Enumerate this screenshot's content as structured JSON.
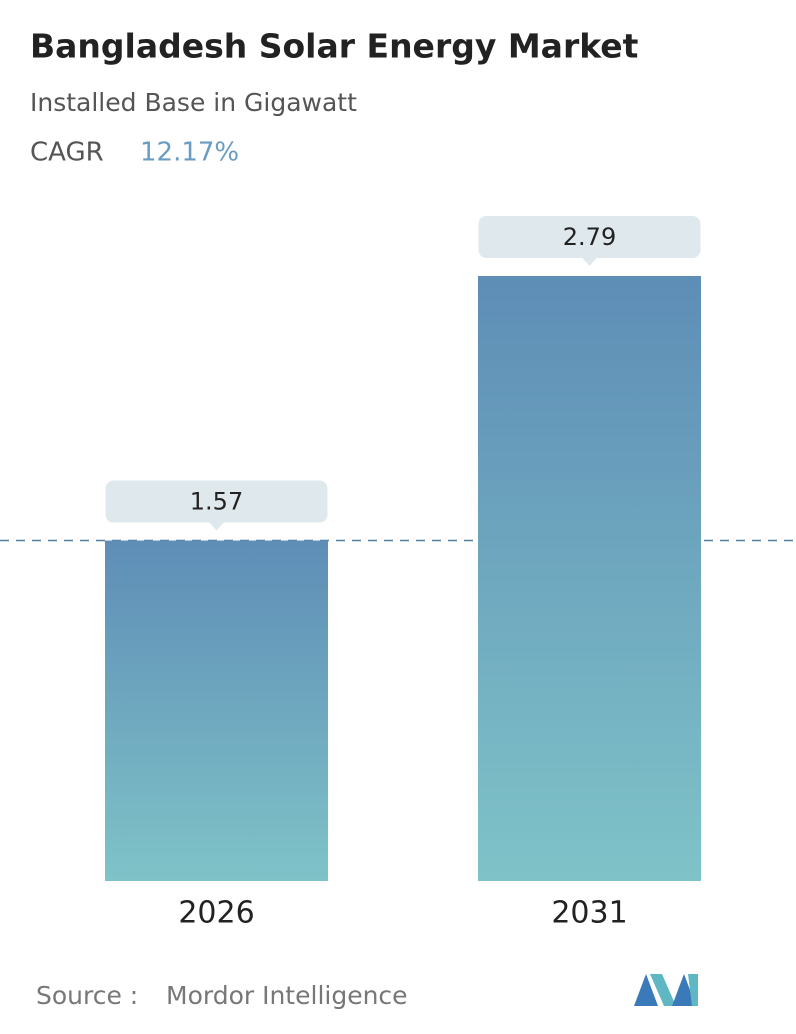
{
  "chart_data": {
    "type": "bar",
    "title": "Bangladesh Solar Energy Market",
    "subtitle": "Installed Base in Gigawatt",
    "cagr_label": "CAGR",
    "cagr_value": "12.17%",
    "categories": [
      "2026",
      "2031"
    ],
    "values": [
      1.57,
      2.79
    ],
    "gradient": [
      "#5e8db6",
      "#7fc3c8"
    ],
    "source_label": "Source :",
    "source": "Mordor Intelligence"
  }
}
